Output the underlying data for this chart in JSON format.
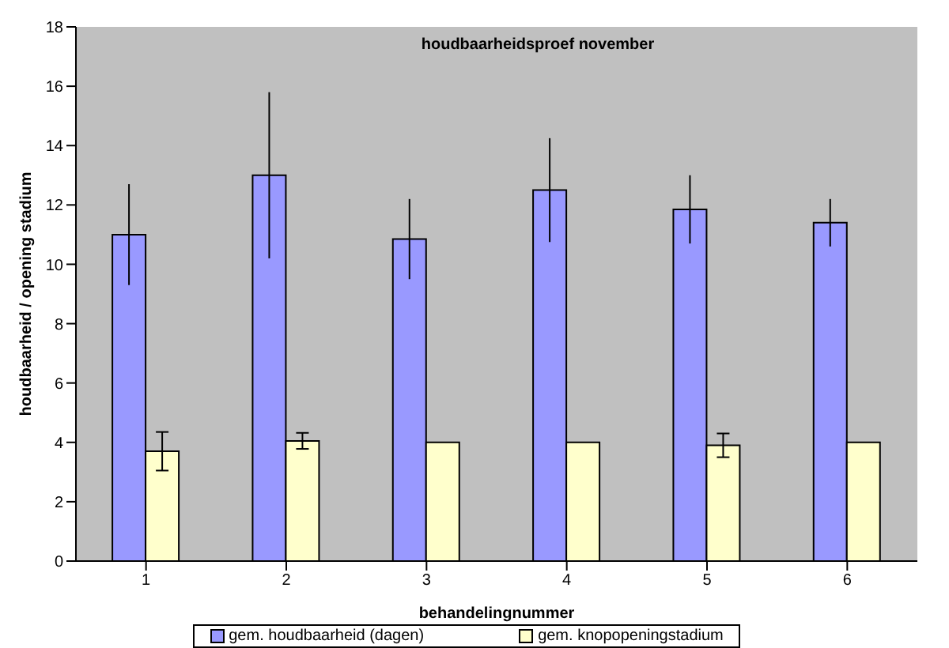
{
  "chart_data": {
    "type": "bar",
    "title": "houdbaarheidsproef november",
    "xlabel": "behandelingnummer",
    "ylabel": "houdbaarheid / opening stadium",
    "categories": [
      "1",
      "2",
      "3",
      "4",
      "5",
      "6"
    ],
    "series": [
      {
        "name": "gem. houdbaarheid (dagen)",
        "color": "#9999ff",
        "values": [
          11.0,
          13.0,
          10.85,
          12.5,
          11.85,
          11.4
        ],
        "errors": [
          1.7,
          2.8,
          1.35,
          1.75,
          1.15,
          0.8
        ]
      },
      {
        "name": "gem. knopopeningstadium",
        "color": "#ffffcc",
        "values": [
          3.7,
          4.05,
          4.0,
          4.0,
          3.9,
          4.0
        ],
        "errors": [
          0.65,
          0.27,
          0,
          0,
          0.4,
          0
        ]
      }
    ],
    "ylim": [
      0,
      18
    ],
    "yticks": [
      0,
      2,
      4,
      6,
      8,
      10,
      12,
      14,
      16,
      18
    ],
    "grid": false,
    "legend": "bottom"
  }
}
